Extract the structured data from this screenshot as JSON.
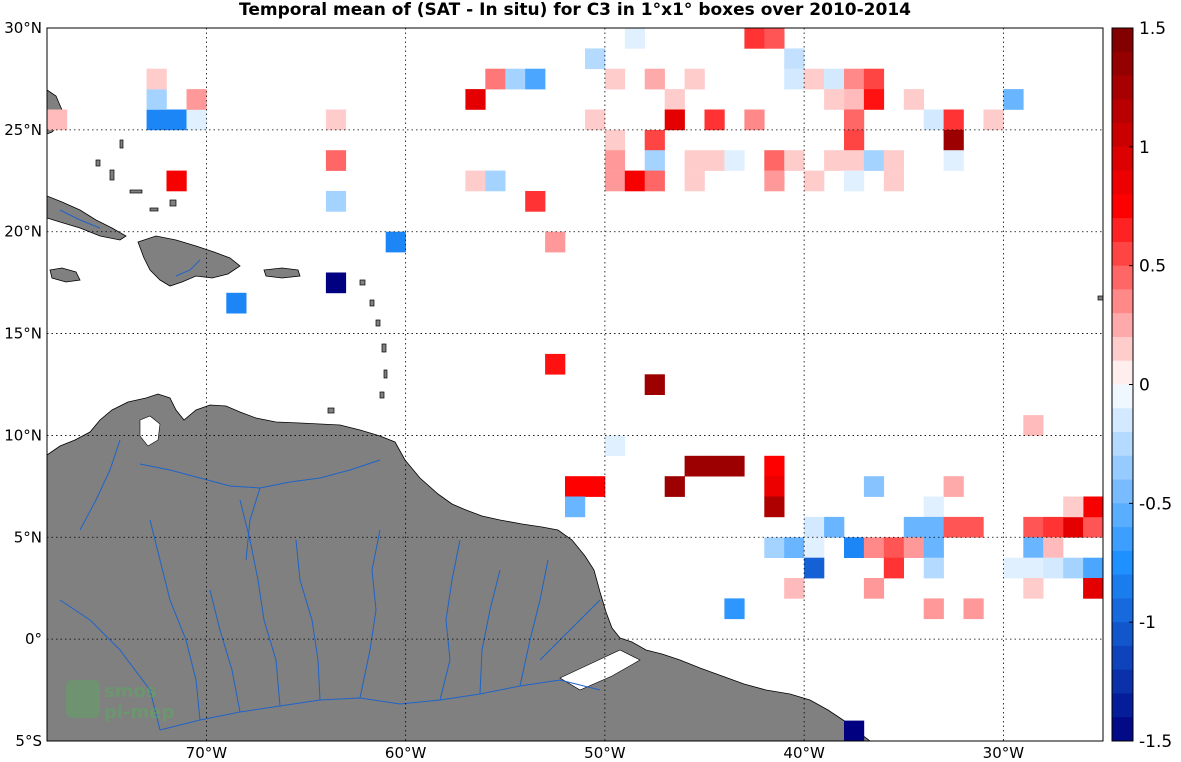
{
  "title": "Temporal mean of (SAT - In situ) for C3 in 1°x1° boxes over 2010-2014",
  "lat_ticks": [
    {
      "value": 30,
      "text": "30°N"
    },
    {
      "value": 25,
      "text": "25°N"
    },
    {
      "value": 20,
      "text": "20°N"
    },
    {
      "value": 15,
      "text": "15°N"
    },
    {
      "value": 10,
      "text": "10°N"
    },
    {
      "value": 5,
      "text": "5°N"
    },
    {
      "value": 0,
      "text": "0°"
    },
    {
      "value": -5,
      "text": "5°S"
    }
  ],
  "lon_ticks": [
    {
      "value": -70,
      "text": "70°W"
    },
    {
      "value": -60,
      "text": "60°W"
    },
    {
      "value": -50,
      "text": "50°W"
    },
    {
      "value": -40,
      "text": "40°W"
    },
    {
      "value": -30,
      "text": "30°W"
    }
  ],
  "colorbar": {
    "min": -1.5,
    "max": 1.5,
    "ticks": [
      "1.5",
      "1",
      "0.5",
      "0",
      "-0.5",
      "-1",
      "-1.5"
    ],
    "neg_color": "#000080",
    "pos_color": "#7a0000",
    "zero_color": "#ffffff"
  },
  "colors": {
    "land": "#808080",
    "rivers": "#1f63c8",
    "grid": "#000000"
  },
  "watermark": {
    "line1": "smos",
    "line2": "pi-mep"
  },
  "chart_data": {
    "type": "heatmap",
    "title": "Temporal mean of (SAT - In situ) for C3 in 1°x1° boxes over 2010-2014",
    "x_range": [
      -78,
      -25
    ],
    "y_range": [
      -5,
      30
    ],
    "clim": [
      -1.5,
      1.5
    ],
    "cells": [
      {
        "lon": -64,
        "lat": 17,
        "value": -1.5
      },
      {
        "lon": -38,
        "lat": -5,
        "value": -1.5
      },
      {
        "lon": -69,
        "lat": 16,
        "value": -0.8
      },
      {
        "lon": -61,
        "lat": 19,
        "value": -0.8
      },
      {
        "lon": -73,
        "lat": 25,
        "value": -0.8
      },
      {
        "lon": -72,
        "lat": 25,
        "value": -0.8
      },
      {
        "lon": -71,
        "lat": 25,
        "value": -0.1
      },
      {
        "lon": -73,
        "lat": 26,
        "value": -0.3
      },
      {
        "lon": -73,
        "lat": 27,
        "value": 0.15
      },
      {
        "lon": -72,
        "lat": 22,
        "value": 0.8
      },
      {
        "lon": -71,
        "lat": 26,
        "value": 0.3
      },
      {
        "lon": -78,
        "lat": 25,
        "value": 0.2
      },
      {
        "lon": -64,
        "lat": 25,
        "value": 0.15
      },
      {
        "lon": -64,
        "lat": 23,
        "value": 0.45
      },
      {
        "lon": -64,
        "lat": 21,
        "value": -0.3
      },
      {
        "lon": -57,
        "lat": 26,
        "value": 0.9
      },
      {
        "lon": -56,
        "lat": 27,
        "value": 0.4
      },
      {
        "lon": -55,
        "lat": 27,
        "value": -0.3
      },
      {
        "lon": -54,
        "lat": 27,
        "value": -0.6
      },
      {
        "lon": -57,
        "lat": 22,
        "value": 0.15
      },
      {
        "lon": -56,
        "lat": 22,
        "value": -0.3
      },
      {
        "lon": -54,
        "lat": 21,
        "value": 0.6
      },
      {
        "lon": -53,
        "lat": 19,
        "value": 0.3
      },
      {
        "lon": -53,
        "lat": 13,
        "value": 0.7
      },
      {
        "lon": -51,
        "lat": 28,
        "value": -0.25
      },
      {
        "lon": -49,
        "lat": 29,
        "value": -0.1
      },
      {
        "lon": -50,
        "lat": 27,
        "value": 0.15
      },
      {
        "lon": -48,
        "lat": 27,
        "value": 0.25
      },
      {
        "lon": -46,
        "lat": 27,
        "value": 0.15
      },
      {
        "lon": -47,
        "lat": 26,
        "value": 0.15
      },
      {
        "lon": -51,
        "lat": 25,
        "value": 0.15
      },
      {
        "lon": -47,
        "lat": 25,
        "value": 0.9
      },
      {
        "lon": -45,
        "lat": 25,
        "value": 0.6
      },
      {
        "lon": -43,
        "lat": 25,
        "value": 0.35
      },
      {
        "lon": -43,
        "lat": 29,
        "value": 0.6
      },
      {
        "lon": -42,
        "lat": 29,
        "value": 0.5
      },
      {
        "lon": -41,
        "lat": 28,
        "value": -0.2
      },
      {
        "lon": -41,
        "lat": 27,
        "value": -0.15
      },
      {
        "lon": -40,
        "lat": 27,
        "value": 0.15
      },
      {
        "lon": -39,
        "lat": 27,
        "value": -0.15
      },
      {
        "lon": -38,
        "lat": 27,
        "value": 0.35
      },
      {
        "lon": -37,
        "lat": 27,
        "value": 0.55
      },
      {
        "lon": -38,
        "lat": 26,
        "value": 0.2
      },
      {
        "lon": -37,
        "lat": 26,
        "value": 0.7
      },
      {
        "lon": -39,
        "lat": 26,
        "value": 0.15
      },
      {
        "lon": -35,
        "lat": 26,
        "value": 0.15
      },
      {
        "lon": -38,
        "lat": 25,
        "value": 0.45
      },
      {
        "lon": -38,
        "lat": 24,
        "value": 0.55
      },
      {
        "lon": -34,
        "lat": 25,
        "value": -0.15
      },
      {
        "lon": -33,
        "lat": 25,
        "value": 0.6
      },
      {
        "lon": -33,
        "lat": 24,
        "value": 1.3
      },
      {
        "lon": -31,
        "lat": 25,
        "value": 0.15
      },
      {
        "lon": -30,
        "lat": 26,
        "value": -0.5
      },
      {
        "lon": -50,
        "lat": 24,
        "value": 0.15
      },
      {
        "lon": -48,
        "lat": 24,
        "value": 0.55
      },
      {
        "lon": -50,
        "lat": 23,
        "value": 0.3
      },
      {
        "lon": -48,
        "lat": 23,
        "value": -0.3
      },
      {
        "lon": -46,
        "lat": 23,
        "value": 0.15
      },
      {
        "lon": -45,
        "lat": 23,
        "value": 0.15
      },
      {
        "lon": -44,
        "lat": 23,
        "value": -0.1
      },
      {
        "lon": -42,
        "lat": 23,
        "value": 0.45
      },
      {
        "lon": -41,
        "lat": 23,
        "value": 0.15
      },
      {
        "lon": -39,
        "lat": 23,
        "value": 0.15
      },
      {
        "lon": -38,
        "lat": 23,
        "value": 0.15
      },
      {
        "lon": -37,
        "lat": 23,
        "value": -0.3
      },
      {
        "lon": -36,
        "lat": 23,
        "value": 0.15
      },
      {
        "lon": -33,
        "lat": 23,
        "value": -0.1
      },
      {
        "lon": -50,
        "lat": 22,
        "value": 0.3
      },
      {
        "lon": -49,
        "lat": 22,
        "value": 0.8
      },
      {
        "lon": -48,
        "lat": 22,
        "value": 0.45
      },
      {
        "lon": -46,
        "lat": 22,
        "value": 0.15
      },
      {
        "lon": -42,
        "lat": 22,
        "value": 0.3
      },
      {
        "lon": -40,
        "lat": 22,
        "value": 0.15
      },
      {
        "lon": -38,
        "lat": 22,
        "value": -0.1
      },
      {
        "lon": -36,
        "lat": 22,
        "value": 0.15
      },
      {
        "lon": -48,
        "lat": 12,
        "value": 1.3
      },
      {
        "lon": -50,
        "lat": 9,
        "value": -0.1
      },
      {
        "lon": -46,
        "lat": 8,
        "value": 1.3
      },
      {
        "lon": -45,
        "lat": 8,
        "value": 1.3
      },
      {
        "lon": -44,
        "lat": 8,
        "value": 1.3
      },
      {
        "lon": -42,
        "lat": 8,
        "value": 0.75
      },
      {
        "lon": -42,
        "lat": 7,
        "value": 0.85
      },
      {
        "lon": -42,
        "lat": 6,
        "value": 1.2
      },
      {
        "lon": -47,
        "lat": 7,
        "value": 1.3
      },
      {
        "lon": -52,
        "lat": 7,
        "value": 0.75
      },
      {
        "lon": -51,
        "lat": 7,
        "value": 0.75
      },
      {
        "lon": -52,
        "lat": 6,
        "value": -0.5
      },
      {
        "lon": -37,
        "lat": 7,
        "value": -0.4
      },
      {
        "lon": -33,
        "lat": 7,
        "value": 0.25
      },
      {
        "lon": -34,
        "lat": 6,
        "value": -0.1
      },
      {
        "lon": -40,
        "lat": 5,
        "value": -0.15
      },
      {
        "lon": -39,
        "lat": 5,
        "value": -0.5
      },
      {
        "lon": -35,
        "lat": 5,
        "value": -0.5
      },
      {
        "lon": -34,
        "lat": 5,
        "value": -0.5
      },
      {
        "lon": -33,
        "lat": 5,
        "value": 0.5
      },
      {
        "lon": -32,
        "lat": 5,
        "value": 0.5
      },
      {
        "lon": -29,
        "lat": 5,
        "value": 0.5
      },
      {
        "lon": -28,
        "lat": 5,
        "value": 0.6
      },
      {
        "lon": -27,
        "lat": 5,
        "value": 0.9
      },
      {
        "lon": -26,
        "lat": 5,
        "value": 0.5
      },
      {
        "lon": -26,
        "lat": 6,
        "value": 0.8
      },
      {
        "lon": -27,
        "lat": 6,
        "value": 0.15
      },
      {
        "lon": -42,
        "lat": 4,
        "value": -0.3
      },
      {
        "lon": -41,
        "lat": 4,
        "value": -0.5
      },
      {
        "lon": -40,
        "lat": 4,
        "value": -0.1
      },
      {
        "lon": -38,
        "lat": 4,
        "value": -0.8
      },
      {
        "lon": -37,
        "lat": 4,
        "value": 0.35
      },
      {
        "lon": -36,
        "lat": 4,
        "value": 0.5
      },
      {
        "lon": -35,
        "lat": 4,
        "value": 0.3
      },
      {
        "lon": -34,
        "lat": 4,
        "value": -0.5
      },
      {
        "lon": -29,
        "lat": 4,
        "value": -0.5
      },
      {
        "lon": -28,
        "lat": 4,
        "value": 0.2
      },
      {
        "lon": -40,
        "lat": 3,
        "value": -1.0
      },
      {
        "lon": -36,
        "lat": 3,
        "value": 0.6
      },
      {
        "lon": -34,
        "lat": 3,
        "value": -0.25
      },
      {
        "lon": -30,
        "lat": 3,
        "value": -0.1
      },
      {
        "lon": -29,
        "lat": 3,
        "value": -0.1
      },
      {
        "lon": -28,
        "lat": 3,
        "value": -0.15
      },
      {
        "lon": -27,
        "lat": 3,
        "value": -0.3
      },
      {
        "lon": -26,
        "lat": 3,
        "value": -0.6
      },
      {
        "lon": -41,
        "lat": 2,
        "value": 0.2
      },
      {
        "lon": -37,
        "lat": 2,
        "value": 0.3
      },
      {
        "lon": -29,
        "lat": 2,
        "value": 0.15
      },
      {
        "lon": -26,
        "lat": 2,
        "value": 0.9
      },
      {
        "lon": -44,
        "lat": 1,
        "value": -0.7
      },
      {
        "lon": -34,
        "lat": 1,
        "value": 0.3
      },
      {
        "lon": -32,
        "lat": 1,
        "value": 0.3
      },
      {
        "lon": -29,
        "lat": 10,
        "value": 0.2
      }
    ]
  }
}
